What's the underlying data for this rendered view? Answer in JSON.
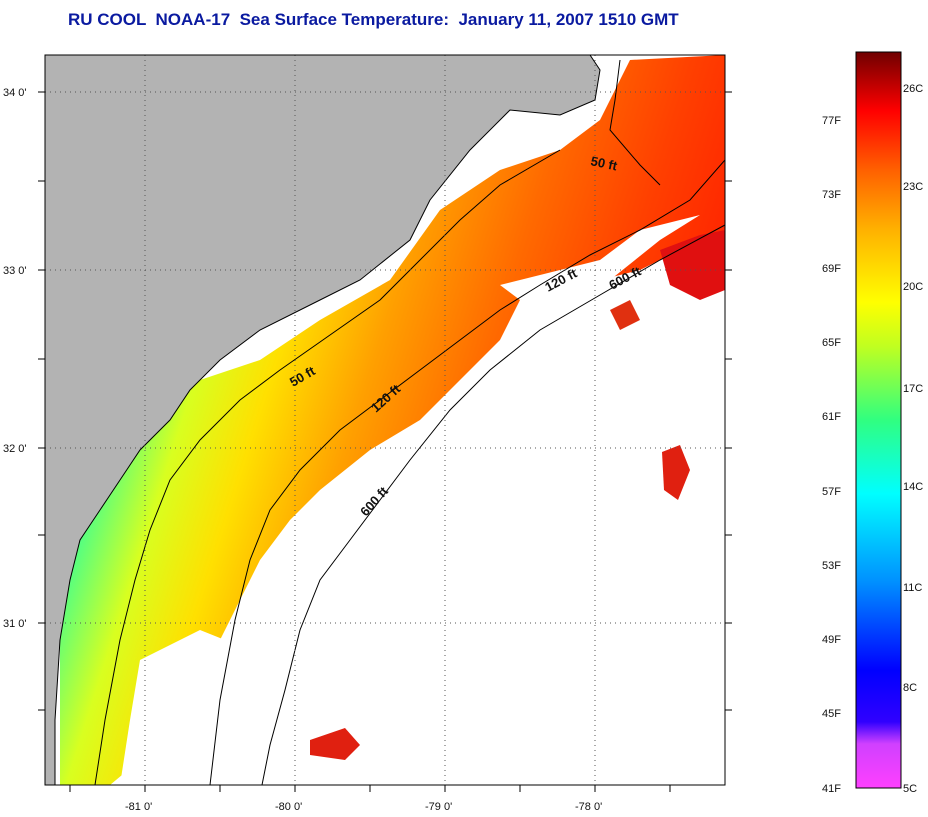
{
  "title": "RU COOL  NOAA-17  Sea Surface Temperature:  January 11, 2007 1510 GMT",
  "colors": {
    "land": "#b3b3b3",
    "cloud": "#ffffff",
    "frame": "#000000",
    "title": "#0a1aa0"
  },
  "map": {
    "lat_labels": [
      "34 0'",
      "33 0'",
      "32 0'",
      "31 0'"
    ],
    "lon_labels": [
      "-81 0'",
      "-80 0'",
      "-79 0'",
      "-78 0'"
    ],
    "contours": [
      {
        "label": "50 ft"
      },
      {
        "label": "120 ft"
      },
      {
        "label": "600 ft"
      }
    ]
  },
  "colorbar": {
    "fahrenheit": [
      "77F",
      "73F",
      "69F",
      "65F",
      "61F",
      "57F",
      "53F",
      "49F",
      "45F",
      "41F"
    ],
    "celsius": [
      "26C",
      "23C",
      "20C",
      "17C",
      "14C",
      "11C",
      "8C",
      "5C"
    ]
  }
}
